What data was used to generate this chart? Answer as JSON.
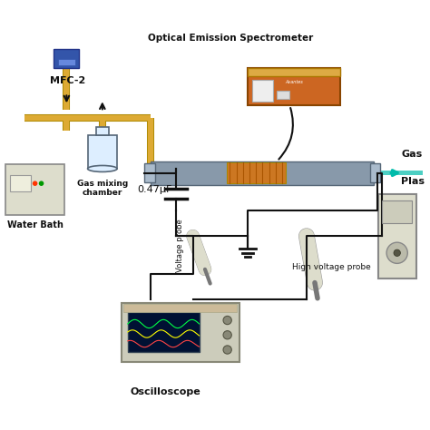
{
  "background_color": "#ffffff",
  "labels": {
    "mfc2": "MFC-2",
    "oes": "Optical Emission Spectrometer",
    "gas_mixing": "Gas mixing\nchamber",
    "water_bath": "Water Bath",
    "capacitor": "0.47μF",
    "voltage_probe": "Voltage probe",
    "high_voltage_probe": "High voltage probe",
    "oscilloscope": "Oscilloscope",
    "gas": "Gas",
    "plasma": "Plas"
  },
  "colors": {
    "tube_gray": "#8899aa",
    "tube_outline": "#556677",
    "copper_coil": "#cc7722",
    "fitting": "#aabbcc",
    "pipe_yellow": "#ddaa33",
    "pipe_outline": "#aa8800",
    "wire_black": "#111111",
    "oes_body": "#cc6622",
    "oes_top": "#ddaa55",
    "bottle_outline": "#556677",
    "bottle_fill": "#ddeeff",
    "water_bath_fill": "#ddddcc",
    "probe_body": "#ddddcc",
    "teal_beam": "#00bbaa"
  },
  "figsize": [
    4.74,
    4.74
  ],
  "dpi": 100
}
